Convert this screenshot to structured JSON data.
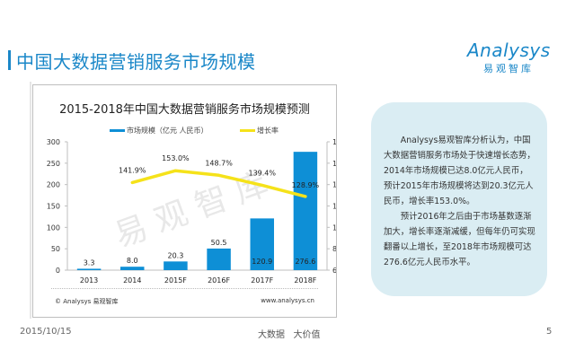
{
  "page": {
    "title": "中国大数据营销服务市场规模",
    "logo": {
      "wordmark": "Analysys",
      "subtitle": "易观智库"
    },
    "footer": {
      "date": "2015/10/15",
      "slogan": "大数据   大价值",
      "page_number": "5"
    }
  },
  "analysis": {
    "paragraphs": [
      "Analysys易观智库分析认为，中国大数据营销服务市场处于快速增长态势，2014年市场规模已达8.0亿元人民币，预计2015年市场规模将达到20.3亿元人民币，增长率153.0%。",
      "预计2016年之后由于市场基数逐渐加大，增长率逐渐减缓，但每年仍可实现翻番以上增长，至2018年市场规模可达276.6亿元人民币水平。"
    ]
  },
  "chart_data": {
    "type": "bar",
    "title": "2015-2018年中国大数据营销服务市场规模预测",
    "categories": [
      "2013",
      "2014",
      "2015F",
      "2016F",
      "2017F",
      "2018F"
    ],
    "series": [
      {
        "name": "市场规模（亿元 人民币）",
        "type": "bar",
        "axis": "left",
        "color": "#0e8fd6",
        "values": [
          3.3,
          8.0,
          20.3,
          50.5,
          120.9,
          276.6
        ],
        "labels": [
          "3.3",
          "8.0",
          "20.3",
          "50.5",
          "120.9",
          "276.6"
        ]
      },
      {
        "name": "增长率",
        "type": "line",
        "axis": "right",
        "color": "#f5e21a",
        "values": [
          null,
          141.9,
          153.0,
          148.7,
          139.4,
          128.9
        ],
        "labels": [
          "",
          "141.9%",
          "153.0%",
          "148.7%",
          "139.4%",
          "128.9%"
        ]
      }
    ],
    "y_left": {
      "min": 0,
      "max": 300,
      "ticks": [
        "0",
        "50",
        "100",
        "150",
        "200",
        "250",
        "300"
      ]
    },
    "y_right": {
      "min": 60,
      "max": 180,
      "ticks": [
        "60%",
        "80%",
        "100%",
        "120%",
        "140%",
        "160%",
        "180%"
      ]
    },
    "legend_position": "top",
    "grid": false,
    "watermark": "易 观 智 库",
    "source": "© Analysys 易观智库",
    "site": "www.analysys.cn"
  }
}
